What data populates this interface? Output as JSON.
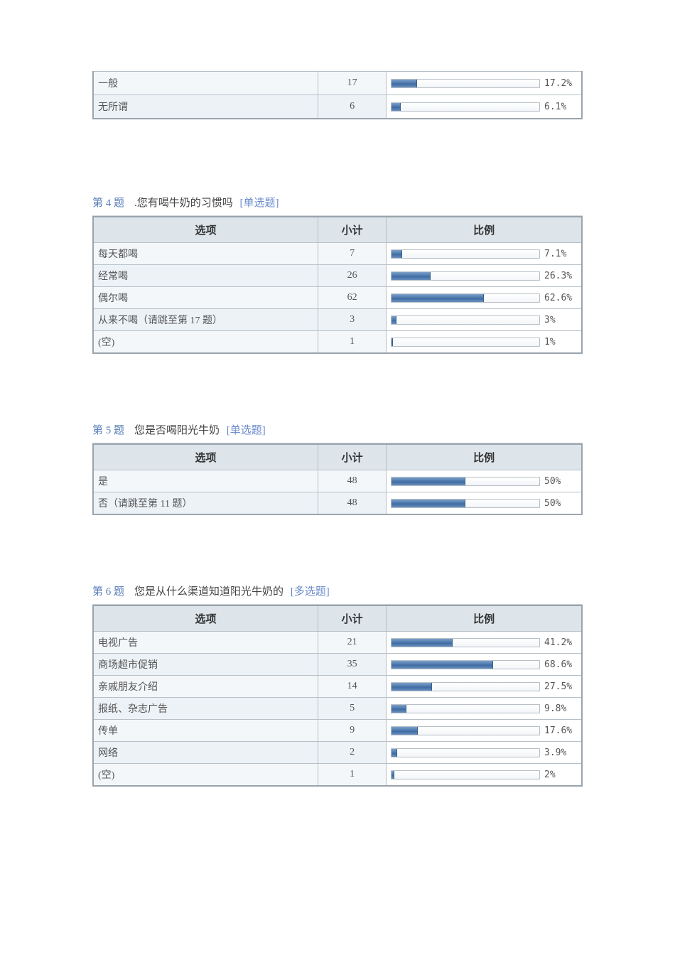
{
  "columns": {
    "option": "选项",
    "count": "小计",
    "ratio": "比例"
  },
  "colors": {
    "bar_start": "#7ba0c9",
    "bar_mid": "#3e6ba2",
    "bar_border": "#3a5e8a",
    "table_border": "#9aa4ad",
    "cell_border": "#b7c0c7",
    "header_bg": "#dde5eb",
    "row_bg": "#f4f7fa",
    "row_alt_bg": "#edf2f7",
    "qnum_color": "#5a7fb8",
    "qtype_color": "#6a8acc"
  },
  "partial_rows": [
    {
      "label": "一般",
      "count": "17",
      "pct": 17.2,
      "pct_label": "17.2%"
    },
    {
      "label": "无所谓",
      "count": "6",
      "pct": 6.1,
      "pct_label": "6.1%"
    }
  ],
  "questions": [
    {
      "num": "第 4 题",
      "text": ".您有喝牛奶的习惯吗",
      "type": "[单选题]",
      "rows": [
        {
          "label": "每天都喝",
          "count": "7",
          "pct": 7.1,
          "pct_label": "7.1%"
        },
        {
          "label": "经常喝",
          "count": "26",
          "pct": 26.3,
          "pct_label": "26.3%"
        },
        {
          "label": "偶尔喝",
          "count": "62",
          "pct": 62.6,
          "pct_label": "62.6%"
        },
        {
          "label": "从来不喝（请跳至第 17 题）",
          "count": "3",
          "pct": 3,
          "pct_label": "3%"
        },
        {
          "label": "(空)",
          "count": "1",
          "pct": 1,
          "pct_label": "1%"
        }
      ]
    },
    {
      "num": "第 5 题",
      "text": "您是否喝阳光牛奶",
      "type": "[单选题]",
      "rows": [
        {
          "label": "是",
          "count": "48",
          "pct": 50,
          "pct_label": "50%"
        },
        {
          "label": "否（请跳至第 11 题）",
          "count": "48",
          "pct": 50,
          "pct_label": "50%"
        }
      ]
    },
    {
      "num": "第 6 题",
      "text": "您是从什么渠道知道阳光牛奶的",
      "type": "[多选题]",
      "rows": [
        {
          "label": "电视广告",
          "count": "21",
          "pct": 41.2,
          "pct_label": "41.2%"
        },
        {
          "label": "商场超市促销",
          "count": "35",
          "pct": 68.6,
          "pct_label": "68.6%"
        },
        {
          "label": "亲戚朋友介绍",
          "count": "14",
          "pct": 27.5,
          "pct_label": "27.5%"
        },
        {
          "label": "报纸、杂志广告",
          "count": "5",
          "pct": 9.8,
          "pct_label": "9.8%"
        },
        {
          "label": "传单",
          "count": "9",
          "pct": 17.6,
          "pct_label": "17.6%"
        },
        {
          "label": "网络",
          "count": "2",
          "pct": 3.9,
          "pct_label": "3.9%"
        },
        {
          "label": "(空)",
          "count": "1",
          "pct": 2,
          "pct_label": "2%"
        }
      ]
    }
  ]
}
